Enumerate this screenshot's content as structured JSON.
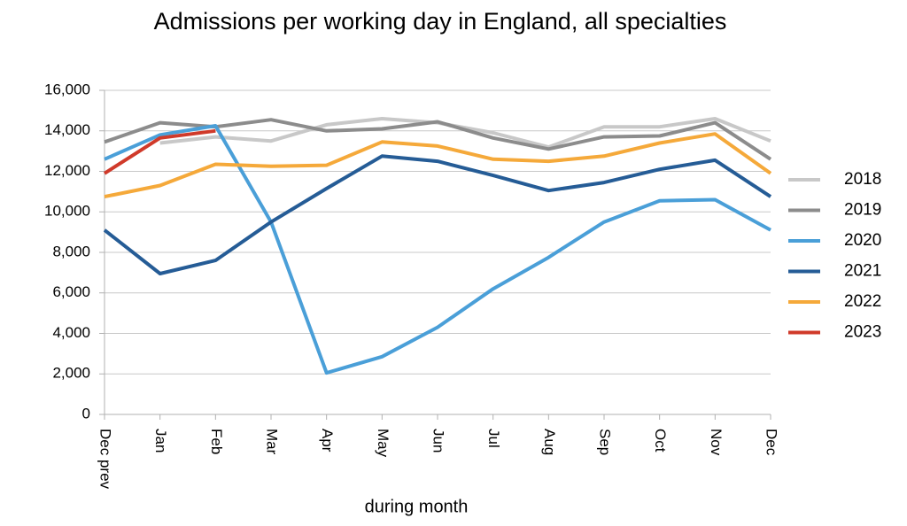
{
  "chart_data": {
    "type": "line",
    "title": "Admissions per working day in England, all specialties",
    "x_label": "during  month",
    "categories": [
      "Dec prev",
      "Jan",
      "Feb",
      "Mar",
      "Apr",
      "May",
      "Jun",
      "Jul",
      "Aug",
      "Sep",
      "Oct",
      "Nov",
      "Dec"
    ],
    "series": [
      {
        "name": "2018",
        "color": "#c8c8c8",
        "values": [
          null,
          13400,
          13700,
          13500,
          14300,
          14600,
          14400,
          13900,
          13200,
          14200,
          14200,
          14600,
          13500
        ]
      },
      {
        "name": "2019",
        "color": "#8c8c8c",
        "values": [
          13450,
          14400,
          14200,
          14550,
          14000,
          14100,
          14450,
          13650,
          13100,
          13700,
          13750,
          14400,
          12600
        ]
      },
      {
        "name": "2020",
        "color": "#4a9fd8",
        "values": [
          12600,
          13800,
          14250,
          9500,
          2050,
          2850,
          4300,
          6200,
          7750,
          9500,
          10550,
          10600,
          9100
        ]
      },
      {
        "name": "2021",
        "color": "#255c96",
        "values": [
          9100,
          6950,
          7600,
          9500,
          11150,
          12750,
          12500,
          11800,
          11050,
          11450,
          12100,
          12550,
          10750
        ]
      },
      {
        "name": "2022",
        "color": "#f5a93a",
        "values": [
          10750,
          11300,
          12350,
          12250,
          12300,
          13450,
          13250,
          12600,
          12500,
          12750,
          13400,
          13850,
          11900
        ]
      },
      {
        "name": "2023",
        "color": "#d03a2a",
        "values": [
          11900,
          13650,
          14000,
          null,
          null,
          null,
          null,
          null,
          null,
          null,
          null,
          null,
          null
        ]
      }
    ],
    "ylim": [
      0,
      16000
    ],
    "yticks": [
      0,
      {
        "value": 2000,
        "label": "2,000"
      },
      {
        "value": 4000,
        "label": "4,000"
      },
      {
        "value": 6000,
        "label": "6,000"
      },
      {
        "value": 8000,
        "label": "8,000"
      },
      {
        "value": 10000,
        "label": "10,000"
      },
      {
        "value": 12000,
        "label": "12,000"
      },
      {
        "value": 14000,
        "label": "14,000"
      },
      {
        "value": 16000,
        "label": "16,000"
      }
    ],
    "grid": true,
    "legend": "right"
  }
}
